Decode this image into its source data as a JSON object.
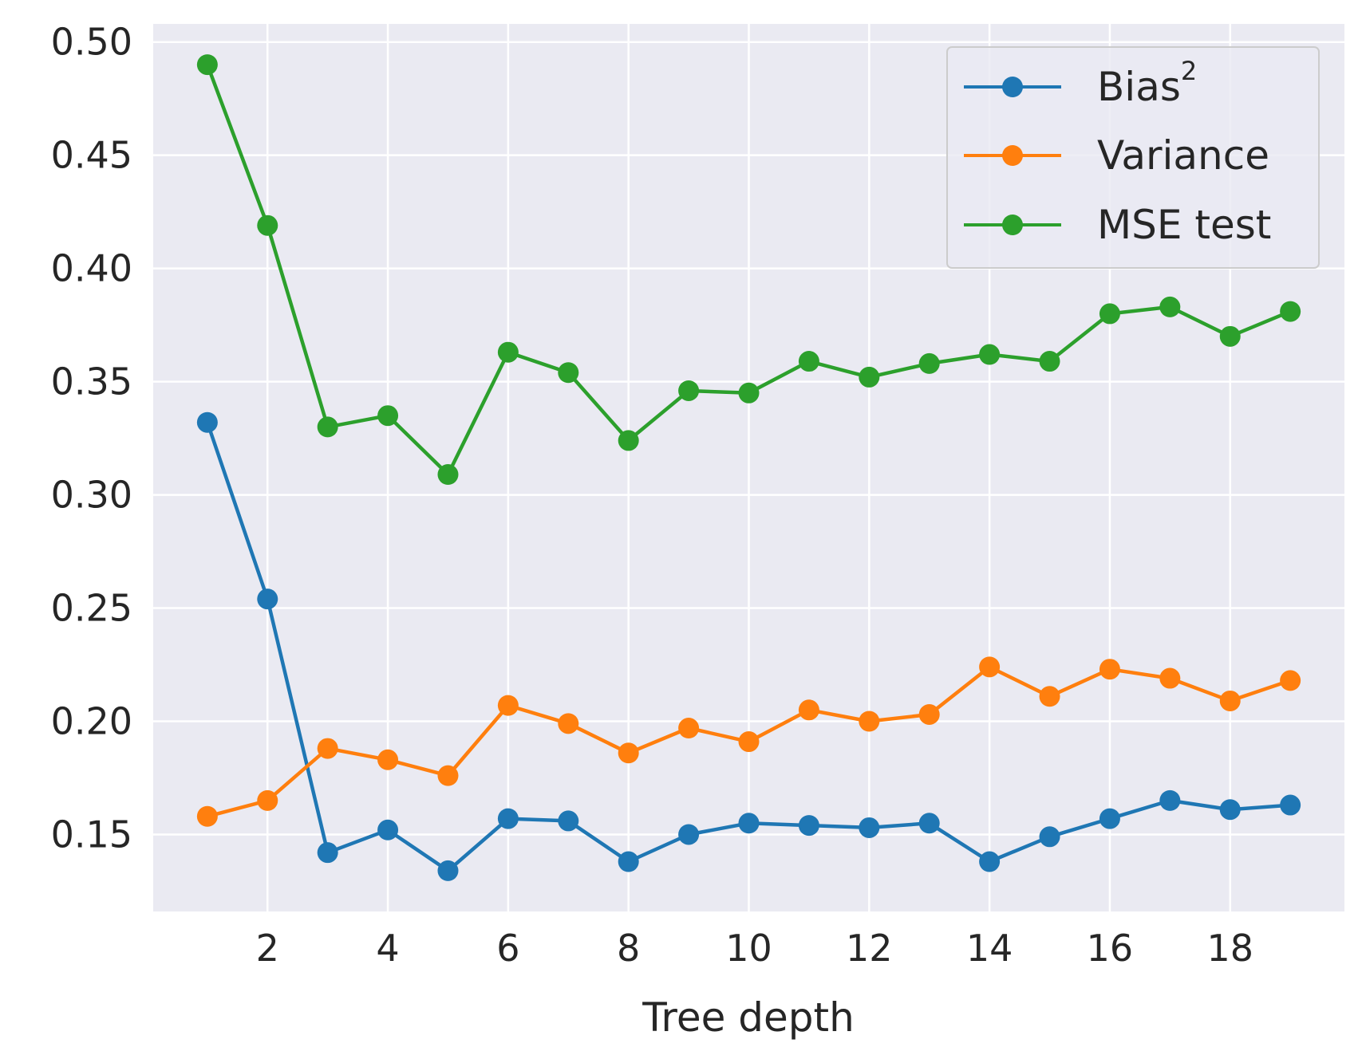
{
  "chart_data": {
    "type": "line",
    "title": "",
    "xlabel": "Tree depth",
    "ylabel": "",
    "x": [
      1,
      2,
      3,
      4,
      5,
      6,
      7,
      8,
      9,
      10,
      11,
      12,
      13,
      14,
      15,
      16,
      17,
      18,
      19
    ],
    "xlim": [
      0.1,
      19.9
    ],
    "ylim": [
      0.116,
      0.508
    ],
    "xticks": [
      2,
      4,
      6,
      8,
      10,
      12,
      14,
      16,
      18
    ],
    "yticks": [
      0.15,
      0.2,
      0.25,
      0.3,
      0.35,
      0.4,
      0.45,
      0.5
    ],
    "xtick_labels": [
      "2",
      "4",
      "6",
      "8",
      "10",
      "12",
      "14",
      "16",
      "18"
    ],
    "ytick_labels": [
      "0.15",
      "0.20",
      "0.25",
      "0.30",
      "0.35",
      "0.40",
      "0.45",
      "0.50"
    ],
    "grid": true,
    "legend_position": "top-right",
    "background_color": "#EAEAF2",
    "grid_color": "#FFFFFF",
    "series": [
      {
        "name": "Bias",
        "name_superscript": "2",
        "color": "#1F77B4",
        "values": [
          0.332,
          0.254,
          0.142,
          0.152,
          0.134,
          0.157,
          0.156,
          0.138,
          0.15,
          0.155,
          0.154,
          0.153,
          0.155,
          0.138,
          0.149,
          0.157,
          0.165,
          0.161,
          0.163
        ]
      },
      {
        "name": "Variance",
        "color": "#FF7F0E",
        "values": [
          0.158,
          0.165,
          0.188,
          0.183,
          0.176,
          0.207,
          0.199,
          0.186,
          0.197,
          0.191,
          0.205,
          0.2,
          0.203,
          0.224,
          0.211,
          0.223,
          0.219,
          0.209,
          0.218
        ]
      },
      {
        "name": "MSE test",
        "color": "#2CA02C",
        "values": [
          0.49,
          0.419,
          0.33,
          0.335,
          0.309,
          0.363,
          0.354,
          0.324,
          0.346,
          0.345,
          0.359,
          0.352,
          0.358,
          0.362,
          0.359,
          0.38,
          0.383,
          0.37,
          0.381
        ]
      }
    ]
  }
}
